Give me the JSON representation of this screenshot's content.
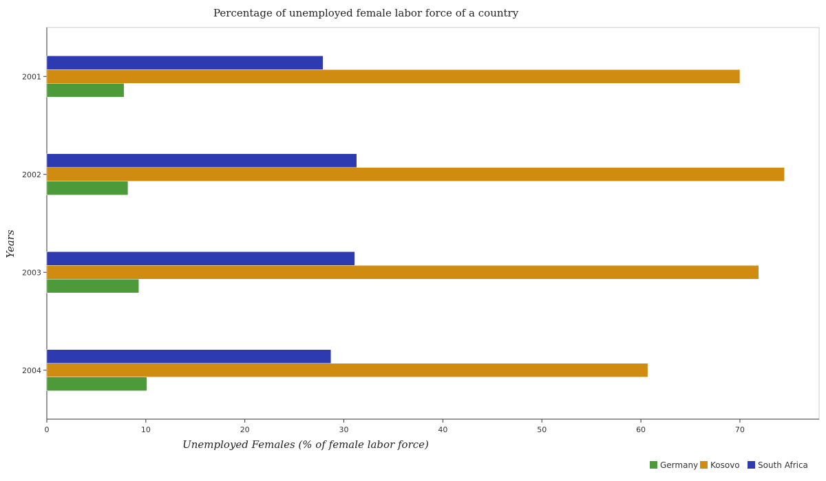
{
  "chart_data": {
    "type": "bar",
    "orientation": "horizontal",
    "title": "Percentage of unemployed female labor force of a country",
    "xlabel": "Unemployed Females (% of female labor force)",
    "ylabel": "Years",
    "categories": [
      "2001",
      "2002",
      "2003",
      "2004"
    ],
    "xlim": [
      0,
      78
    ],
    "xticks": [
      0,
      10,
      20,
      30,
      40,
      50,
      60,
      70
    ],
    "grid": false,
    "legend_position": "bottom-right",
    "series": [
      {
        "name": "Germany",
        "color": "#4d9a3a",
        "values": [
          7.8,
          8.2,
          9.3,
          10.1
        ]
      },
      {
        "name": "Kosovo",
        "color": "#cf8c10",
        "values": [
          70.0,
          74.5,
          71.9,
          60.7
        ]
      },
      {
        "name": "South Africa",
        "color": "#2e3ab0",
        "values": [
          27.9,
          31.3,
          31.1,
          28.7
        ]
      }
    ]
  }
}
